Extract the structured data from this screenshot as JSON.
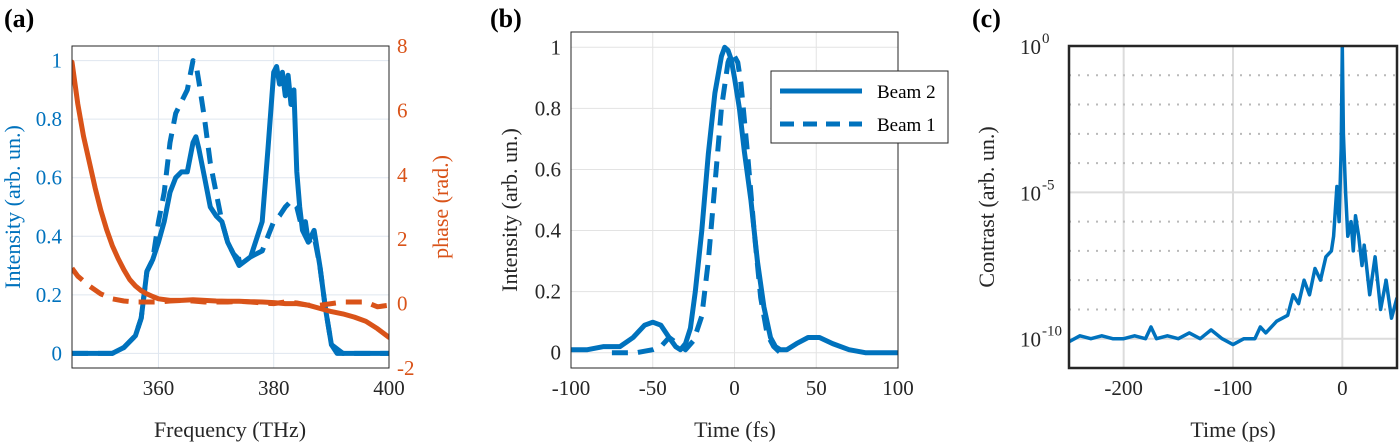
{
  "chart_data": [
    {
      "panel": "(a)",
      "type": "line",
      "xlabel": "Frequency (THz)",
      "ylabel": "Intensity (arb. un.)",
      "y2label": "phase (rad.)",
      "xlim": [
        345,
        400
      ],
      "ylim": [
        -0.05,
        1.05
      ],
      "y2lim": [
        -2,
        8
      ],
      "xticks": [
        360,
        380,
        400
      ],
      "yticks": [
        0,
        0.2,
        0.4,
        0.6,
        0.8,
        1
      ],
      "ytick_labels": [
        "0",
        "0.2",
        "0.4",
        "0.6",
        "0.8",
        "1"
      ],
      "y2ticks": [
        -2,
        0,
        2,
        4,
        6,
        8
      ],
      "grid": true,
      "colors": {
        "intensity": "#0072BD",
        "phase": "#D95319"
      },
      "series": [
        {
          "axis": "left",
          "style": "solid",
          "x": [
            345,
            352,
            354,
            356,
            357,
            358,
            359,
            360,
            361,
            362,
            363,
            364,
            365,
            366,
            366.5,
            367,
            368,
            369,
            370,
            371,
            372,
            373,
            374,
            376,
            378,
            379,
            380,
            380.5,
            381,
            381.5,
            382,
            382.5,
            383,
            383.5,
            384,
            384.5,
            385,
            385.5,
            386,
            387,
            388,
            389,
            390,
            391,
            392,
            400
          ],
          "y": [
            0,
            0,
            0.02,
            0.06,
            0.12,
            0.28,
            0.32,
            0.38,
            0.45,
            0.55,
            0.6,
            0.62,
            0.62,
            0.72,
            0.74,
            0.7,
            0.6,
            0.5,
            0.47,
            0.45,
            0.38,
            0.34,
            0.3,
            0.33,
            0.45,
            0.7,
            0.96,
            0.98,
            0.92,
            0.96,
            0.88,
            0.95,
            0.85,
            0.9,
            0.62,
            0.5,
            0.42,
            0.45,
            0.38,
            0.42,
            0.3,
            0.15,
            0.03,
            0,
            0,
            0
          ]
        },
        {
          "axis": "left",
          "style": "dashed",
          "x": [
            345,
            352,
            354,
            356,
            357,
            358,
            359,
            360,
            361,
            362,
            363,
            364,
            365,
            366,
            366.5,
            367,
            368,
            369,
            370,
            371,
            372,
            373,
            374,
            376,
            378,
            380,
            381,
            382,
            383,
            384,
            385,
            386,
            387,
            388,
            389,
            390,
            392,
            400
          ],
          "y": [
            0,
            0,
            0.02,
            0.06,
            0.12,
            0.28,
            0.32,
            0.45,
            0.55,
            0.72,
            0.82,
            0.86,
            0.9,
            1.0,
            0.99,
            0.93,
            0.8,
            0.65,
            0.55,
            0.45,
            0.38,
            0.34,
            0.32,
            0.33,
            0.35,
            0.45,
            0.47,
            0.5,
            0.52,
            0.5,
            0.42,
            0.38,
            0.4,
            0.3,
            0.15,
            0.03,
            0,
            0
          ]
        },
        {
          "axis": "right",
          "style": "solid",
          "x": [
            345,
            346,
            347,
            348,
            349,
            350,
            351,
            352,
            353,
            354,
            355,
            356,
            357,
            358,
            359,
            360,
            362,
            364,
            366,
            368,
            370,
            372,
            374,
            376,
            378,
            380,
            382,
            384,
            386,
            388,
            390,
            392,
            394,
            396,
            398,
            400
          ],
          "y": [
            7.5,
            6.2,
            5.2,
            4.4,
            3.6,
            2.9,
            2.3,
            1.8,
            1.4,
            1.05,
            0.75,
            0.55,
            0.4,
            0.3,
            0.22,
            0.15,
            0.1,
            0.1,
            0.12,
            0.1,
            0.08,
            0.07,
            0.07,
            0.06,
            0.05,
            0.03,
            0.0,
            0.0,
            -0.05,
            -0.15,
            -0.25,
            -0.32,
            -0.42,
            -0.55,
            -0.78,
            -1.05
          ]
        },
        {
          "axis": "right",
          "style": "dashed",
          "x": [
            345,
            346,
            348,
            350,
            352,
            354,
            356,
            358,
            360,
            362,
            364,
            366,
            368,
            370,
            372,
            374,
            376,
            378,
            380,
            382,
            384,
            386,
            388,
            390,
            392,
            394,
            396,
            398,
            400
          ],
          "y": [
            1.1,
            0.85,
            0.55,
            0.3,
            0.15,
            0.08,
            0.05,
            0.05,
            0.05,
            0.08,
            0.1,
            0.08,
            0.05,
            0.05,
            0.05,
            0.07,
            0.05,
            0.02,
            0.0,
            0.05,
            0.02,
            -0.05,
            -0.05,
            0.0,
            0.05,
            0.05,
            0.05,
            -0.1,
            -0.05
          ]
        }
      ]
    },
    {
      "panel": "(b)",
      "type": "line",
      "xlabel": "Time (fs)",
      "ylabel": "Intensity (arb. un.)",
      "xlim": [
        -100,
        100
      ],
      "ylim": [
        -0.05,
        1.05
      ],
      "xticks": [
        -100,
        -50,
        0,
        50,
        100
      ],
      "yticks": [
        0,
        0.2,
        0.4,
        0.6,
        0.8,
        1
      ],
      "ytick_labels": [
        "0",
        "0.2",
        "0.4",
        "0.6",
        "0.8",
        "1"
      ],
      "grid": true,
      "legend_position": "top-right",
      "series": [
        {
          "name": "Beam 2",
          "style": "solid",
          "x": [
            -100,
            -90,
            -80,
            -70,
            -62,
            -55,
            -50,
            -45,
            -40,
            -36,
            -33,
            -30,
            -27,
            -24,
            -20,
            -16,
            -12,
            -8,
            -6,
            -4,
            -2,
            0,
            3,
            6,
            10,
            14,
            18,
            22,
            25,
            28,
            32,
            38,
            45,
            52,
            60,
            70,
            80,
            90,
            100
          ],
          "y": [
            0.01,
            0.01,
            0.02,
            0.02,
            0.05,
            0.09,
            0.1,
            0.09,
            0.05,
            0.02,
            0.01,
            0.03,
            0.08,
            0.2,
            0.4,
            0.65,
            0.85,
            0.97,
            1.0,
            0.99,
            0.96,
            0.9,
            0.8,
            0.66,
            0.5,
            0.3,
            0.15,
            0.05,
            0.02,
            0.01,
            0.01,
            0.03,
            0.05,
            0.05,
            0.03,
            0.01,
            0.0,
            0.0,
            0.0
          ]
        },
        {
          "name": "Beam 1",
          "style": "dashed",
          "x": [
            -75,
            -70,
            -60,
            -50,
            -45,
            -40,
            -35,
            -30,
            -25,
            -20,
            -16,
            -12,
            -8,
            -4,
            -2,
            0,
            2,
            4,
            8,
            12,
            16,
            20,
            24,
            28,
            32
          ],
          "y": [
            0.0,
            0.0,
            0.0,
            0.01,
            0.02,
            0.05,
            0.03,
            0.01,
            0.04,
            0.12,
            0.3,
            0.55,
            0.8,
            0.95,
            0.98,
            0.97,
            0.95,
            0.88,
            0.65,
            0.4,
            0.18,
            0.06,
            0.02,
            0.0,
            0.0
          ]
        }
      ]
    },
    {
      "panel": "(c)",
      "type": "line",
      "scale_y": "log",
      "xlabel": "Time (ps)",
      "ylabel": "Contrast (arb. un.)",
      "xlim": [
        -250,
        50
      ],
      "ylim_log10": [
        -11,
        0
      ],
      "xticks": [
        -200,
        -100,
        0
      ],
      "yticks_log10": [
        0,
        -5,
        -10
      ],
      "ytick_labels": [
        "10",
        "10",
        "10"
      ],
      "ytick_exponents": [
        "0",
        "-5",
        "-10"
      ],
      "grid": true,
      "series": [
        {
          "style": "solid",
          "x": [
            -250,
            -240,
            -230,
            -220,
            -210,
            -200,
            -190,
            -180,
            -175,
            -170,
            -160,
            -150,
            -140,
            -130,
            -120,
            -110,
            -100,
            -90,
            -80,
            -75,
            -70,
            -60,
            -50,
            -45,
            -40,
            -35,
            -30,
            -25,
            -20,
            -15,
            -10,
            -8,
            -5,
            -3,
            -1,
            0,
            1,
            3,
            5,
            8,
            10,
            12,
            15,
            18,
            20,
            25,
            30,
            35,
            40,
            45,
            50
          ],
          "log10y": [
            -10.1,
            -9.9,
            -10.0,
            -9.9,
            -10.0,
            -10.0,
            -9.9,
            -10.0,
            -9.6,
            -10.0,
            -9.9,
            -10.0,
            -9.8,
            -10.0,
            -9.7,
            -10.0,
            -10.2,
            -10.0,
            -10.0,
            -9.6,
            -9.8,
            -9.4,
            -9.2,
            -8.5,
            -8.8,
            -8.0,
            -8.5,
            -7.6,
            -8.0,
            -7.2,
            -7.0,
            -6.5,
            -4.8,
            -6.0,
            -3.5,
            0.0,
            -3.0,
            -5.0,
            -6.5,
            -6.0,
            -7.0,
            -5.8,
            -6.5,
            -7.5,
            -6.8,
            -8.5,
            -7.2,
            -9.0,
            -8.0,
            -9.3,
            -8.6
          ]
        }
      ]
    }
  ]
}
